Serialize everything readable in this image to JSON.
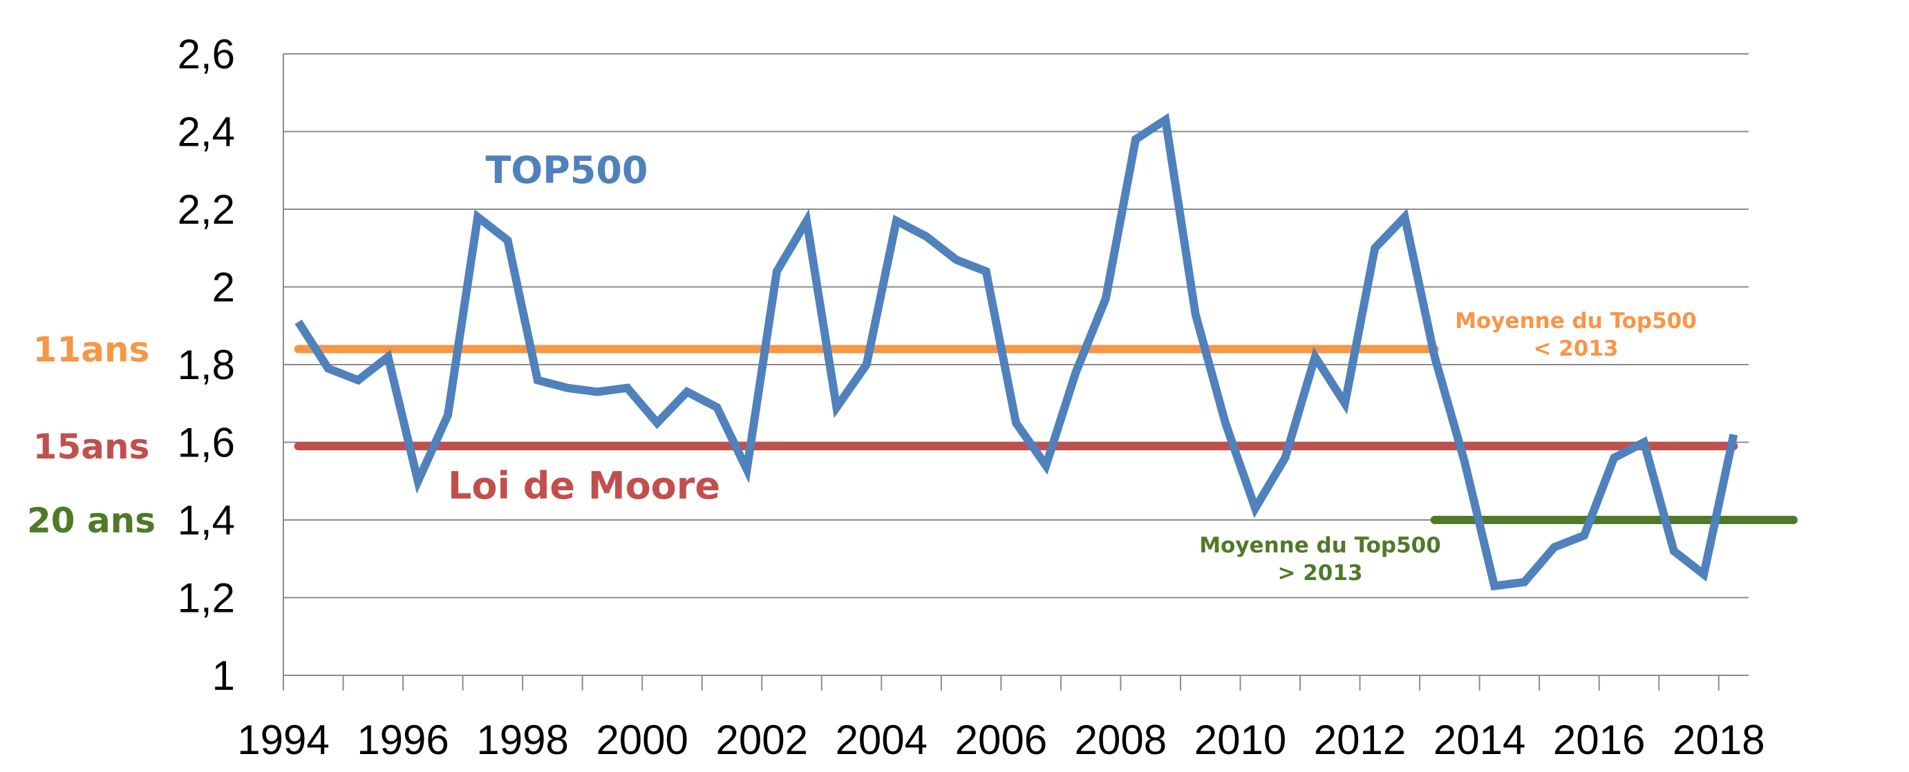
{
  "chart_data": {
    "type": "line",
    "title": "",
    "xlabel": "",
    "ylabel": "",
    "ylim": [
      1,
      2.6
    ],
    "xlim": [
      1994,
      2018.5
    ],
    "grid": true,
    "y_ticks": [
      "1",
      "1,2",
      "1,4",
      "1,6",
      "1,8",
      "2",
      "2,2",
      "2,4",
      "2,6"
    ],
    "y_tick_values": [
      1,
      1.2,
      1.4,
      1.6,
      1.8,
      2,
      2.2,
      2.4,
      2.6
    ],
    "x_ticks": [
      "1994",
      "1996",
      "1998",
      "2000",
      "2002",
      "2004",
      "2006",
      "2008",
      "2010",
      "2012",
      "2014",
      "2016",
      "2018"
    ],
    "x_tick_values": [
      1994,
      1996,
      1998,
      2000,
      2002,
      2004,
      2006,
      2008,
      2010,
      2012,
      2014,
      2016,
      2018
    ],
    "series": [
      {
        "name": "TOP500",
        "color": "#4f81bd",
        "x": [
          1994.25,
          1994.75,
          1995.25,
          1995.75,
          1996.25,
          1996.75,
          1997.25,
          1997.75,
          1998.25,
          1998.75,
          1999.25,
          1999.75,
          2000.25,
          2000.75,
          2001.25,
          2001.75,
          2002.25,
          2002.75,
          2003.25,
          2003.75,
          2004.25,
          2004.75,
          2005.25,
          2005.75,
          2006.25,
          2006.75,
          2007.25,
          2007.75,
          2008.25,
          2008.75,
          2009.25,
          2009.75,
          2010.25,
          2010.75,
          2011.25,
          2011.75,
          2012.25,
          2012.75,
          2013.25,
          2013.75,
          2014.25,
          2014.75,
          2015.25,
          2015.75,
          2016.25,
          2016.75,
          2017.25,
          2017.75,
          2018.25
        ],
        "values": [
          1.91,
          1.79,
          1.76,
          1.82,
          1.5,
          1.67,
          2.18,
          2.12,
          1.76,
          1.74,
          1.73,
          1.74,
          1.65,
          1.73,
          1.69,
          1.53,
          2.04,
          2.17,
          1.69,
          1.8,
          2.17,
          2.13,
          2.07,
          2.04,
          1.65,
          1.54,
          1.78,
          1.97,
          2.38,
          2.43,
          1.93,
          1.65,
          1.43,
          1.56,
          1.82,
          1.7,
          2.1,
          2.18,
          1.82,
          1.55,
          1.23,
          1.24,
          1.33,
          1.36,
          1.56,
          1.6,
          1.32,
          1.26,
          1.62
        ]
      }
    ],
    "reference_lines": [
      {
        "side_label": "11ans",
        "note": [
          "Moyenne du Top500",
          "< 2013"
        ],
        "value": 1.84,
        "x_start": 1994.25,
        "x_end": 2013.25,
        "color": "#f79646"
      },
      {
        "side_label": "15ans",
        "note": [
          "Loi de Moore"
        ],
        "value": 1.59,
        "x_start": 1994.25,
        "x_end": 2018.25,
        "color": "#c0504d"
      },
      {
        "side_label": "20 ans",
        "note": [
          "Moyenne du Top500",
          "> 2013"
        ],
        "value": 1.4,
        "x_start": 2013.25,
        "x_end": 2019.25,
        "color": "#4f7a28"
      }
    ]
  }
}
